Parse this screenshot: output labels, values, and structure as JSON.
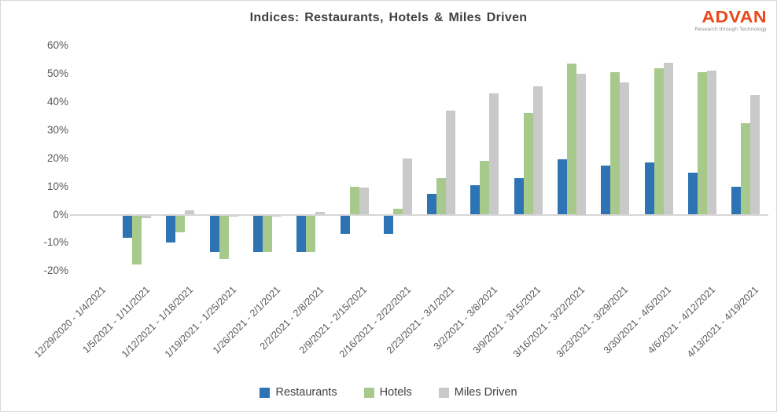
{
  "logo": {
    "text": "ADVAN",
    "tagline": "Research through Technology",
    "color": "#E8481C",
    "tagline_color": "#8A8A8A"
  },
  "chart_data": {
    "type": "bar",
    "title": "Indices: Restaurants, Hotels & Miles Driven",
    "title_color": "#404040",
    "categories": [
      "12/29/2020 - 1/4/2021",
      "1/5/2021 - 1/11/2021",
      "1/12/2021 - 1/18/2021",
      "1/19/2021 - 1/25/2021",
      "1/26/2021 - 2/1/2021",
      "2/2/2021 - 2/8/2021",
      "2/9/2021 - 2/15/2021",
      "2/16/2021 - 2/22/2021",
      "2/23/2021 - 3/1/2021",
      "3/2/2021 - 3/8/2021",
      "3/9/2021 - 3/15/2021",
      "3/16/2021 - 3/22/2021",
      "3/23/2021 - 3/29/2021",
      "3/30/2021 - 4/5/2021",
      "4/6/2021 - 4/12/2021",
      "4/13/2021 - 4/19/2021"
    ],
    "series": [
      {
        "name": "Restaurants",
        "color": "#2E74B5",
        "values": [
          0,
          -8,
          -9.5,
          -13,
          -13,
          -13,
          -6.5,
          -6.5,
          7.5,
          10.5,
          13,
          19.5,
          17.5,
          18.5,
          15,
          10
        ]
      },
      {
        "name": "Hotels",
        "color": "#A8C98C",
        "values": [
          0,
          -17.5,
          -6,
          -15.5,
          -13,
          -13,
          10,
          2,
          13,
          19,
          36,
          53.5,
          50.5,
          52,
          50.5,
          32.5
        ]
      },
      {
        "name": "Miles Driven",
        "color": "#C9C9C9",
        "values": [
          0,
          -1,
          1.5,
          -0.5,
          -0.5,
          1,
          9.5,
          20,
          37,
          43,
          45.5,
          50,
          47,
          54,
          51,
          42.5
        ]
      }
    ],
    "ylim": [
      -20,
      60
    ],
    "yticks": [
      60,
      50,
      40,
      30,
      20,
      10,
      0,
      -10,
      -20
    ],
    "ytick_format": "percent",
    "axis_text_color": "#595959",
    "zero_line_color": "#D6D6D6",
    "grid": false,
    "legend_position": "bottom",
    "legend_text_color": "#404040"
  }
}
